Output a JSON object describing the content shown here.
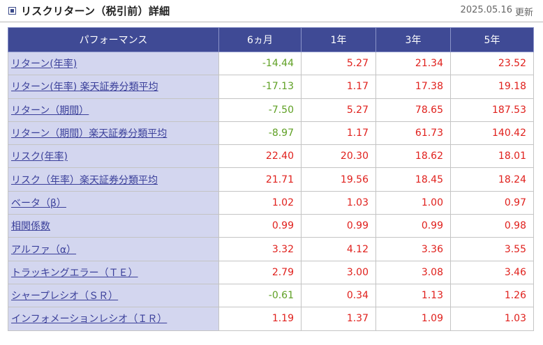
{
  "header": {
    "title": "リスクリターン（税引前）詳細",
    "updated_date": "2025.05.16",
    "updated_label": "更新"
  },
  "table": {
    "columns": [
      "パフォーマンス",
      "6ヵ月",
      "1年",
      "3年",
      "5年"
    ],
    "rows": [
      {
        "label": "リターン(年率)",
        "link": true,
        "values": [
          "-14.44",
          "5.27",
          "21.34",
          "23.52"
        ]
      },
      {
        "label": "リターン(年率) 楽天証券分類平均",
        "link": true,
        "values": [
          "-17.13",
          "1.17",
          "17.38",
          "19.18"
        ]
      },
      {
        "label": "リターン（期間）",
        "link": true,
        "values": [
          "-7.50",
          "5.27",
          "78.65",
          "187.53"
        ]
      },
      {
        "label": "リターン（期間）楽天証券分類平均",
        "link": true,
        "values": [
          "-8.97",
          "1.17",
          "61.73",
          "140.42"
        ]
      },
      {
        "label": "リスク(年率)",
        "link": true,
        "values": [
          "22.40",
          "20.30",
          "18.62",
          "18.01"
        ]
      },
      {
        "label": "リスク（年率）楽天証券分類平均",
        "link": true,
        "values": [
          "21.71",
          "19.56",
          "18.45",
          "18.24"
        ]
      },
      {
        "label": "ベータ（β）",
        "link": true,
        "values": [
          "1.02",
          "1.03",
          "1.00",
          "0.97"
        ]
      },
      {
        "label": "相関係数",
        "link": true,
        "values": [
          "0.99",
          "0.99",
          "0.99",
          "0.98"
        ]
      },
      {
        "label": "アルファ（α）",
        "link": true,
        "values": [
          "3.32",
          "4.12",
          "3.36",
          "3.55"
        ]
      },
      {
        "label": "トラッキングエラー（ＴＥ）",
        "link": true,
        "values": [
          "2.79",
          "3.00",
          "3.08",
          "3.46"
        ]
      },
      {
        "label": "シャープレシオ（ＳＲ）",
        "link": true,
        "values": [
          "-0.61",
          "0.34",
          "1.13",
          "1.26"
        ]
      },
      {
        "label": "インフォメーションレシオ（ＩＲ）",
        "link": true,
        "values": [
          "1.19",
          "1.37",
          "1.09",
          "1.03"
        ]
      }
    ]
  },
  "colors": {
    "header_bg": "#3f4a95",
    "label_bg": "#d3d6ef",
    "link": "#3a3f9a",
    "positive": "#e0201c",
    "negative": "#5fa024"
  }
}
